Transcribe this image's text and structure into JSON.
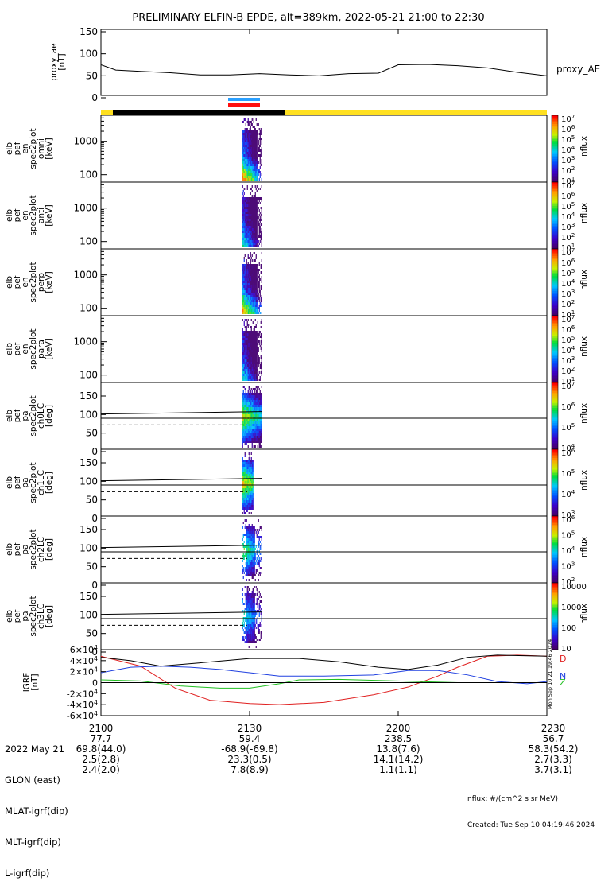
{
  "title": "PRELIMINARY ELFIN-B EPDE, alt=389km, 2022-05-21 21:00 to 22:30",
  "colors": {
    "line": "#000000",
    "bar_yellow": "#ffe020",
    "bar_black": "#000000",
    "marker_blue": "#2aa0ff",
    "marker_red": "#ff1010",
    "bx": "#e02020",
    "by": "#2040e0",
    "bz": "#20c020",
    "bt": "#000000"
  },
  "proxy_ae": {
    "ylabel": "proxy_ae\n[nT]",
    "ticks": [
      "0",
      "50",
      "100",
      "150"
    ],
    "legend": "proxy_AE"
  },
  "spectra_energy": [
    {
      "ylabel": "elb\npef\nen\nspec2plot\nomni\n[keV]",
      "ticks": [
        "100",
        "1000"
      ]
    },
    {
      "ylabel": "elb\npef\nen\nspec2plot\nanti\n[keV]",
      "ticks": [
        "100",
        "1000"
      ]
    },
    {
      "ylabel": "elb\npef\nen\nspec2plot\nperp\n[keV]",
      "ticks": [
        "100",
        "1000"
      ]
    },
    {
      "ylabel": "elb\npef\nen\nspec2plot\npara\n[keV]",
      "ticks": [
        "100",
        "1000"
      ]
    }
  ],
  "spectra_pa": [
    {
      "ylabel": "elb\npef\npa\nspec2plot\nch0LC\n[deg]",
      "ticks": [
        "0",
        "50",
        "100",
        "150"
      ]
    },
    {
      "ylabel": "elb\npef\npa\nspec2plot\nch1LC\n[deg]",
      "ticks": [
        "0",
        "50",
        "100",
        "150"
      ]
    },
    {
      "ylabel": "elb\npef\npa\nspec2plot\nch2LC\n[deg]",
      "ticks": [
        "0",
        "50",
        "100",
        "150"
      ]
    },
    {
      "ylabel": "elb\npef\npa\nspec2plot\nch3LC\n[deg]",
      "ticks": [
        "0",
        "50",
        "100",
        "150"
      ]
    }
  ],
  "colorbars": [
    {
      "label": "nflux",
      "ticks": [
        "10^1",
        "10^2",
        "10^3",
        "10^4",
        "10^5",
        "10^6",
        "10^7"
      ]
    },
    {
      "label": "nflux",
      "ticks": [
        "10^1",
        "10^2",
        "10^3",
        "10^4",
        "10^5",
        "10^6",
        "10^7"
      ]
    },
    {
      "label": "nflux",
      "ticks": [
        "10^1",
        "10^2",
        "10^3",
        "10^4",
        "10^5",
        "10^6",
        "10^7"
      ]
    },
    {
      "label": "nflux",
      "ticks": [
        "10^1",
        "10^2",
        "10^3",
        "10^4",
        "10^5",
        "10^6",
        "10^7"
      ]
    },
    {
      "label": "nflux",
      "ticks": [
        "10^4",
        "10^5",
        "10^6",
        "10^7"
      ]
    },
    {
      "label": "nflux",
      "ticks": [
        "10^3",
        "10^4",
        "10^5",
        "10^6"
      ]
    },
    {
      "label": "nflux",
      "ticks": [
        "10^2",
        "10^3",
        "10^4",
        "10^5",
        "10^6"
      ]
    },
    {
      "label": "nflux",
      "ticks": [
        "10",
        "100",
        "1000",
        "10000"
      ]
    }
  ],
  "igrf": {
    "ylabel": "IGRF\n[nT]",
    "ticks": [
      "-6×10^4",
      "-4×10^4",
      "-2×10^4",
      "0",
      "2×10^4",
      "4×10^4",
      "6×10^4"
    ],
    "side_label": "Mon Sep 10 21:19:46 2024",
    "component_labels": [
      "D",
      "N",
      "Z"
    ]
  },
  "chart_data": {
    "type": "line",
    "title": "PRELIMINARY ELFIN-B EPDE, alt=389km, 2022-05-21 21:00 to 22:30",
    "x_range": [
      "2022-05-21 21:00",
      "2022-05-21 22:30"
    ],
    "x_tick_minutes": [
      0,
      30,
      60,
      90
    ],
    "panels": [
      {
        "name": "proxy_ae",
        "ylim": [
          0,
          150
        ],
        "series": [
          {
            "name": "proxy_AE",
            "x_min": [
              0,
              3,
              8,
              14,
              20,
              26,
              32,
              38,
              44,
              50,
              56,
              60,
              66,
              72,
              78,
              84,
              90
            ],
            "y": [
              75,
              63,
              60,
              57,
              52,
              52,
              55,
              52,
              50,
              55,
              56,
              75,
              76,
              73,
              68,
              58,
              50
            ]
          }
        ]
      },
      {
        "name": "energy spectrograms",
        "yscale": "log",
        "ylim_keV": [
          60,
          6000
        ],
        "burst_window_min": [
          28.5,
          32.5
        ],
        "zlim_nflux": [
          10,
          10000000
        ]
      },
      {
        "name": "pitch-angle spectrograms",
        "ylim_deg": [
          0,
          180
        ],
        "loss_cone_deg": 108,
        "anti_loss_cone_deg": 72,
        "ninety_deg": 90,
        "burst_window_min": [
          28.5,
          32.5
        ]
      },
      {
        "name": "IGRF",
        "ylim": [
          -60000,
          60000
        ],
        "series": [
          {
            "name": "D",
            "x_min": [
              0,
              8,
              15,
              22,
              30,
              36,
              45,
              55,
              62,
              68,
              72,
              78,
              84,
              90
            ],
            "y": [
              48000,
              30000,
              -10000,
              -32000,
              -38000,
              -40000,
              -36000,
              -22000,
              -8000,
              12000,
              28000,
              48000,
              50000,
              48000
            ]
          },
          {
            "name": "N",
            "x_min": [
              0,
              6,
              12,
              18,
              24,
              30,
              36,
              45,
              55,
              62,
              68,
              74,
              80,
              86,
              90
            ],
            "y": [
              18000,
              28000,
              30000,
              28000,
              24000,
              18000,
              12000,
              12000,
              14000,
              22000,
              22000,
              14000,
              2000,
              -2000,
              2000
            ]
          },
          {
            "name": "Z",
            "x_min": [
              0,
              8,
              16,
              24,
              30,
              36,
              40,
              48,
              56,
              64,
              72,
              80,
              90
            ],
            "y": [
              5000,
              3000,
              -6000,
              -10000,
              -10000,
              -2000,
              5000,
              6000,
              4000,
              2000,
              0,
              0,
              0
            ]
          },
          {
            "name": "Bt",
            "x_min": [
              0,
              6,
              12,
              20,
              30,
              40,
              48,
              56,
              62,
              68,
              74,
              80,
              90
            ],
            "y": [
              46000,
              40000,
              30000,
              36000,
              44000,
              44000,
              38000,
              28000,
              24000,
              32000,
              46000,
              50000,
              48000
            ]
          },
          {
            "name": "zero",
            "x_min": [
              0,
              90
            ],
            "y": [
              0,
              0
            ]
          }
        ]
      }
    ]
  },
  "footer": {
    "labels": [
      "2022 May 21",
      "GLON (east)",
      "MLAT-igrf(dip)",
      "MLT-igrf(dip)",
      "L-igrf(dip)"
    ],
    "times": [
      "2100",
      "2130",
      "2200",
      "2230"
    ],
    "glon": [
      "77.7",
      "59.4",
      "238.5",
      "56.7"
    ],
    "mlat": [
      "69.8(44.0)",
      "-68.9(-69.8)",
      "13.8(7.6)",
      "58.3(54.2)"
    ],
    "mlt": [
      "2.5(2.8)",
      "23.3(0.5)",
      "14.1(14.2)",
      "2.7(3.3)"
    ],
    "lshell": [
      "2.4(2.0)",
      "7.8(8.9)",
      "1.1(1.1)",
      "3.7(3.1)"
    ],
    "units_note": "nflux: #/(cm^2 s sr MeV)",
    "created": "Created: Tue Sep 10 04:19:46 2024"
  }
}
